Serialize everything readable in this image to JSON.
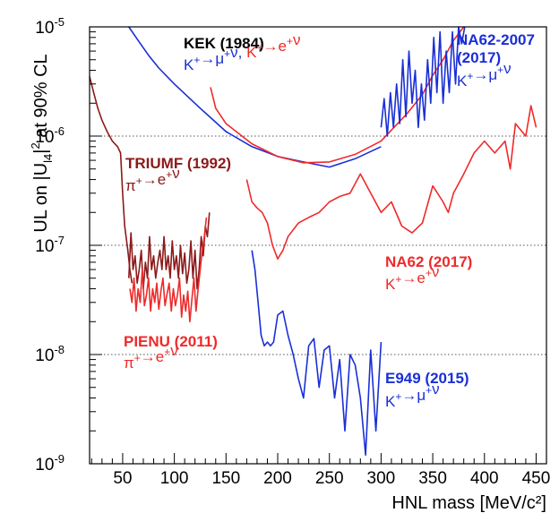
{
  "chart_data": {
    "type": "line",
    "xlabel": "HNL mass [MeV/c²]",
    "ylabel": "UL on |U_l4|² at 90% CL",
    "xlim": [
      18,
      460
    ],
    "ylim": [
      1e-09,
      1e-05
    ],
    "log_y": true,
    "grid": "horizontal dotted lines at 1e-8, 1e-7, 1e-6",
    "x_ticks": [
      "50",
      "100",
      "150",
      "200",
      "250",
      "300",
      "350",
      "400",
      "450"
    ],
    "x_tick_values": [
      50,
      100,
      150,
      200,
      250,
      300,
      350,
      400,
      450
    ],
    "y_ticks": [
      {
        "value": 1e-09,
        "base": "10",
        "exp": "-9"
      },
      {
        "value": 1e-08,
        "base": "10",
        "exp": "-8"
      },
      {
        "value": 1e-07,
        "base": "10",
        "exp": "-7"
      },
      {
        "value": 1e-06,
        "base": "10",
        "exp": "-6"
      },
      {
        "value": 1e-05,
        "base": "10",
        "exp": "-5"
      }
    ],
    "colors": {
      "dark_red": "#8b1a1a",
      "red": "#ee2a2a",
      "blue": "#1a2fd6",
      "black": "#000000"
    },
    "annotations": [
      {
        "id": "kek",
        "title": "KEK (1984)",
        "process": "K⁺→μ⁺ν, K⁺→e⁺ν"
      },
      {
        "id": "na62-2007",
        "title": "NA62-2007",
        "title2": "(2017)",
        "process": "K⁺→μ⁺ν"
      },
      {
        "id": "triumf",
        "title": "TRIUMF (1992)",
        "process": "π⁺→e⁺ν"
      },
      {
        "id": "na62",
        "title": "NA62 (2017)",
        "process": "K⁺→e⁺ν"
      },
      {
        "id": "pienu",
        "title": "PIENU (2011)",
        "process": "π⁺→e⁺ν"
      },
      {
        "id": "e949",
        "title": "E949 (2015)",
        "process": "K⁺→μ⁺ν"
      }
    ],
    "series": [
      {
        "id": "triumf",
        "color": "#8b1a1a",
        "x": [
          18,
          22,
          26,
          30,
          35,
          40,
          45,
          48,
          50,
          52,
          55,
          57,
          59
        ],
        "y": [
          3.5e-06,
          2.5e-06,
          1.8e-06,
          1.4e-06,
          1.1e-06,
          9e-07,
          8e-07,
          7e-07,
          3e-07,
          1.5e-07,
          9e-08,
          6e-08,
          4.5e-08
        ]
      },
      {
        "id": "pienu-upper",
        "color": "#8b1a1a",
        "x": [
          56,
          58,
          60,
          62,
          64,
          66,
          68,
          70,
          72,
          74,
          76,
          78,
          80,
          82,
          84,
          86,
          88,
          90,
          92,
          94,
          96,
          98,
          100,
          102,
          104,
          106,
          108,
          110,
          112,
          114,
          116,
          118,
          120,
          122,
          124,
          126,
          128,
          130,
          132,
          134
        ],
        "y": [
          5e-08,
          1.3e-07,
          6e-08,
          8e-08,
          4.5e-08,
          6e-08,
          9e-08,
          4e-08,
          7e-08,
          5e-08,
          1.2e-07,
          6e-08,
          8e-08,
          5e-08,
          7e-08,
          9e-08,
          6e-08,
          1.2e-07,
          6e-08,
          8e-08,
          5e-08,
          1.1e-07,
          6e-08,
          8e-08,
          5e-08,
          1e-07,
          5.5e-08,
          8.5e-08,
          4.5e-08,
          6e-08,
          1.1e-07,
          5e-08,
          9e-08,
          4e-08,
          6e-08,
          1.2e-07,
          8e-08,
          1.5e-07,
          1.2e-07,
          2e-07
        ]
      },
      {
        "id": "pienu-lower",
        "color": "#ee2a2a",
        "x": [
          57,
          59,
          61,
          63,
          65,
          67,
          69,
          71,
          73,
          75,
          77,
          79,
          81,
          83,
          85,
          87,
          89,
          91,
          93,
          95,
          97,
          99,
          101,
          103,
          105,
          107,
          109,
          111,
          113,
          115,
          117,
          119,
          121,
          123,
          125,
          127,
          129,
          131
        ],
        "y": [
          4e-08,
          3e-08,
          5e-08,
          2.5e-08,
          4e-08,
          3e-08,
          6e-08,
          2.8e-08,
          3.5e-08,
          5e-08,
          2.5e-08,
          4e-08,
          3e-08,
          4.5e-08,
          2.6e-08,
          3.8e-08,
          5e-08,
          2.8e-08,
          3.6e-08,
          4.5e-08,
          2.5e-08,
          4e-08,
          2.8e-08,
          3.5e-08,
          5e-08,
          2.2e-08,
          3.5e-08,
          2.5e-08,
          3.8e-08,
          2e-08,
          3.2e-08,
          5e-08,
          2.5e-08,
          4e-08,
          6e-08,
          9e-08,
          1.2e-07,
          1.8e-07
        ]
      },
      {
        "id": "kek-1",
        "color": "#1a2fd6",
        "x": [
          56,
          65,
          75,
          85,
          100,
          125,
          150,
          175,
          200,
          225,
          250,
          275,
          300
        ],
        "y": [
          1e-05,
          7.5e-06,
          5.5e-06,
          4.2e-06,
          3e-06,
          1.8e-06,
          1.1e-06,
          8e-07,
          6.5e-07,
          5.8e-07,
          5.2e-07,
          6.2e-07,
          8e-07
        ]
      },
      {
        "id": "kek-2",
        "color": "#ee2a2a",
        "x": [
          135,
          140,
          150,
          175,
          200,
          225,
          250,
          275,
          300,
          325,
          340,
          350,
          360,
          370,
          380
        ],
        "y": [
          2.8e-06,
          1.8e-06,
          1.3e-06,
          8.5e-07,
          6.5e-07,
          5.7e-07,
          5.8e-07,
          6.8e-07,
          9e-07,
          1.6e-06,
          2.4e-06,
          3.6e-06,
          5e-06,
          7.5e-06,
          1e-05
        ]
      },
      {
        "id": "na62-2007",
        "color": "#1a2fd6",
        "x": [
          300,
          303,
          306,
          309,
          312,
          315,
          318,
          321,
          324,
          327,
          330,
          333,
          336,
          339,
          342,
          345,
          348,
          351,
          354,
          357,
          360,
          363,
          366,
          369,
          372,
          375,
          378,
          381
        ],
        "y": [
          1.2e-06,
          2.2e-06,
          1e-06,
          2.5e-06,
          1.2e-06,
          3e-06,
          1.3e-06,
          5e-06,
          1.5e-06,
          6e-06,
          2e-06,
          4e-06,
          1.2e-06,
          3e-06,
          1.4e-06,
          5e-06,
          2e-06,
          8e-06,
          2.5e-06,
          9e-06,
          2e-06,
          6e-06,
          2.5e-06,
          9e-06,
          3e-06,
          1e-05,
          7e-06,
          1e-05
        ]
      },
      {
        "id": "na62",
        "color": "#ee2a2a",
        "x": [
          170,
          175,
          180,
          185,
          190,
          195,
          200,
          205,
          210,
          220,
          230,
          240,
          250,
          260,
          270,
          280,
          290,
          300,
          310,
          320,
          330,
          340,
          350,
          360,
          365,
          370,
          380,
          390,
          400,
          410,
          420,
          425,
          430,
          440,
          445,
          450
        ],
        "y": [
          4e-07,
          2.5e-07,
          2.2e-07,
          2e-07,
          1.6e-07,
          1e-07,
          7.5e-08,
          9e-08,
          1.2e-07,
          1.6e-07,
          1.8e-07,
          2e-07,
          2.5e-07,
          2.8e-07,
          3e-07,
          4.5e-07,
          3e-07,
          2e-07,
          2.5e-07,
          1.5e-07,
          1.3e-07,
          1.6e-07,
          3.5e-07,
          2.5e-07,
          2e-07,
          3e-07,
          4.5e-07,
          7e-07,
          9e-07,
          7e-07,
          9e-07,
          5e-07,
          1.3e-06,
          1e-06,
          1.9e-06,
          1.2e-06
        ]
      },
      {
        "id": "e949",
        "color": "#1a2fd6",
        "x": [
          175,
          178,
          181,
          184,
          187,
          190,
          193,
          196,
          200,
          205,
          210,
          215,
          220,
          225,
          230,
          235,
          240,
          245,
          250,
          255,
          260,
          265,
          270,
          275,
          280,
          285,
          290,
          295,
          300
        ],
        "y": [
          9e-08,
          6e-08,
          3e-08,
          1.5e-08,
          1.2e-08,
          1.3e-08,
          1.2e-08,
          1.3e-08,
          2.3e-08,
          2.5e-08,
          1.5e-08,
          1e-08,
          6e-09,
          4e-09,
          1.2e-08,
          1.4e-08,
          5e-09,
          1.1e-08,
          1.2e-08,
          4e-09,
          9e-09,
          2e-09,
          1e-08,
          8e-09,
          4e-09,
          1.2e-09,
          1.1e-08,
          2e-09,
          1.3e-08
        ]
      }
    ]
  }
}
